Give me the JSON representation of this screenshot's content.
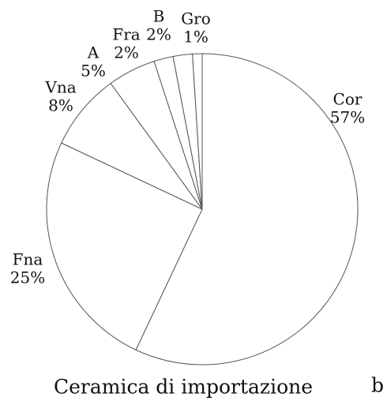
{
  "chart_data": {
    "type": "pie",
    "title": "Ceramica di importazione",
    "panel_label": "b",
    "categories": [
      "Cor",
      "Fna",
      "Vna",
      "A",
      "Fra",
      "B",
      "Gro"
    ],
    "values": [
      57,
      25,
      8,
      5,
      2,
      2,
      1
    ],
    "value_labels": [
      "57%",
      "25%",
      "8%",
      "5%",
      "2%",
      "2%",
      "1%"
    ],
    "color": "#ffffff"
  }
}
